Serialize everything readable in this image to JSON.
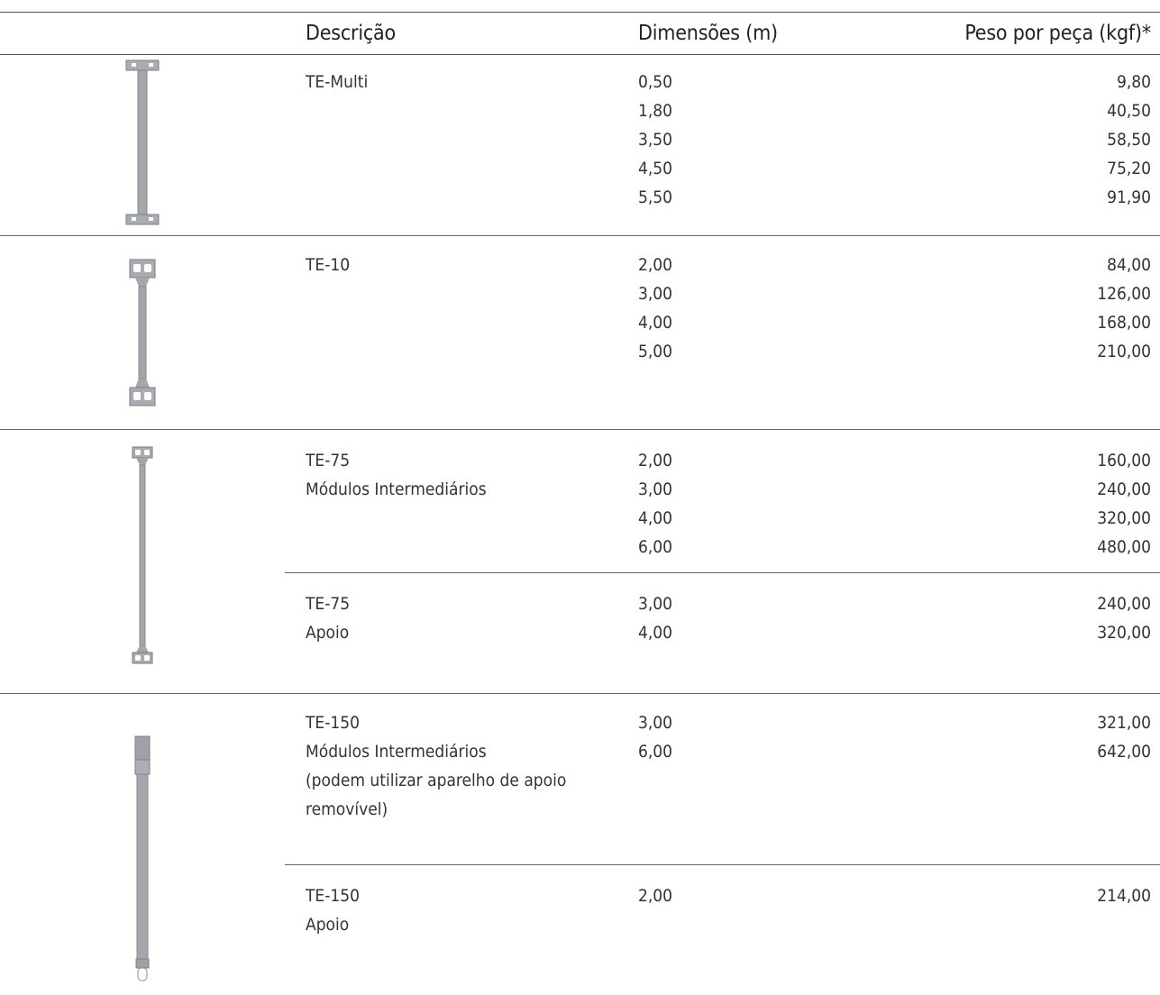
{
  "header": {
    "description": "Descrição",
    "dimensions": "Dimensões (m)",
    "weight": "Peso por peça (kgf)*"
  },
  "rows": [
    {
      "icon": "bracket-pole-small-icon",
      "description": [
        "TE-Multi"
      ],
      "dimensions": [
        "0,50",
        "1,80",
        "3,50",
        "4,50",
        "5,50"
      ],
      "weights": [
        "9,80",
        "40,50",
        "58,50",
        "75,20",
        "91,90"
      ]
    },
    {
      "icon": "bracket-pole-double-icon",
      "description": [
        "TE-10"
      ],
      "dimensions": [
        "2,00",
        "3,00",
        "4,00",
        "5,00"
      ],
      "weights": [
        "84,00",
        "126,00",
        "168,00",
        "210,00"
      ]
    },
    {
      "icon": "bracket-pole-tall-icon",
      "description": [
        "TE-75",
        "Módulos Intermediários"
      ],
      "dimensions": [
        "2,00",
        "3,00",
        "4,00",
        "6,00"
      ],
      "weights": [
        "160,00",
        "240,00",
        "320,00",
        "480,00"
      ]
    },
    {
      "icon": "",
      "description": [
        "TE-75",
        "Apoio"
      ],
      "dimensions": [
        "3,00",
        "4,00"
      ],
      "weights": [
        "240,00",
        "320,00"
      ]
    },
    {
      "icon": "column-pole-icon",
      "description": [
        "TE-150",
        "Módulos Intermediários",
        "(podem utilizar aparelho de apoio",
        "removível)"
      ],
      "dimensions": [
        "3,00",
        "6,00"
      ],
      "weights": [
        "321,00",
        "642,00"
      ]
    },
    {
      "icon": "",
      "description": [
        "TE-150",
        "Apoio"
      ],
      "dimensions": [
        "2,00"
      ],
      "weights": [
        "214,00"
      ]
    }
  ],
  "colors": {
    "rule": "#555555",
    "text": "#333333",
    "steel": "#a3a6ab"
  }
}
